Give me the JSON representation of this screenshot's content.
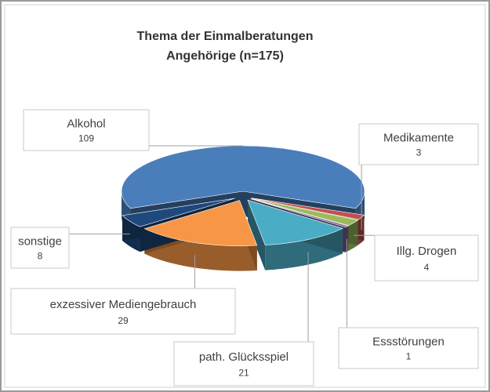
{
  "chart_data": {
    "type": "pie3d",
    "title": [
      "Thema der Einmalberatungen",
      "Angehörige (n=175)"
    ],
    "categories": [
      "Alkohol",
      "Medikamente",
      "Illg. Drogen",
      "Essstörungen",
      "path. Glücksspiel",
      "exzessiver Mediengebrauch",
      "sonstige"
    ],
    "values": [
      109,
      3,
      4,
      1,
      21,
      29,
      8
    ],
    "colors": [
      "#4a7ebb",
      "#c0504d",
      "#9bbb59",
      "#8064a2",
      "#4bacc6",
      "#f79646",
      "#1f497d"
    ]
  }
}
